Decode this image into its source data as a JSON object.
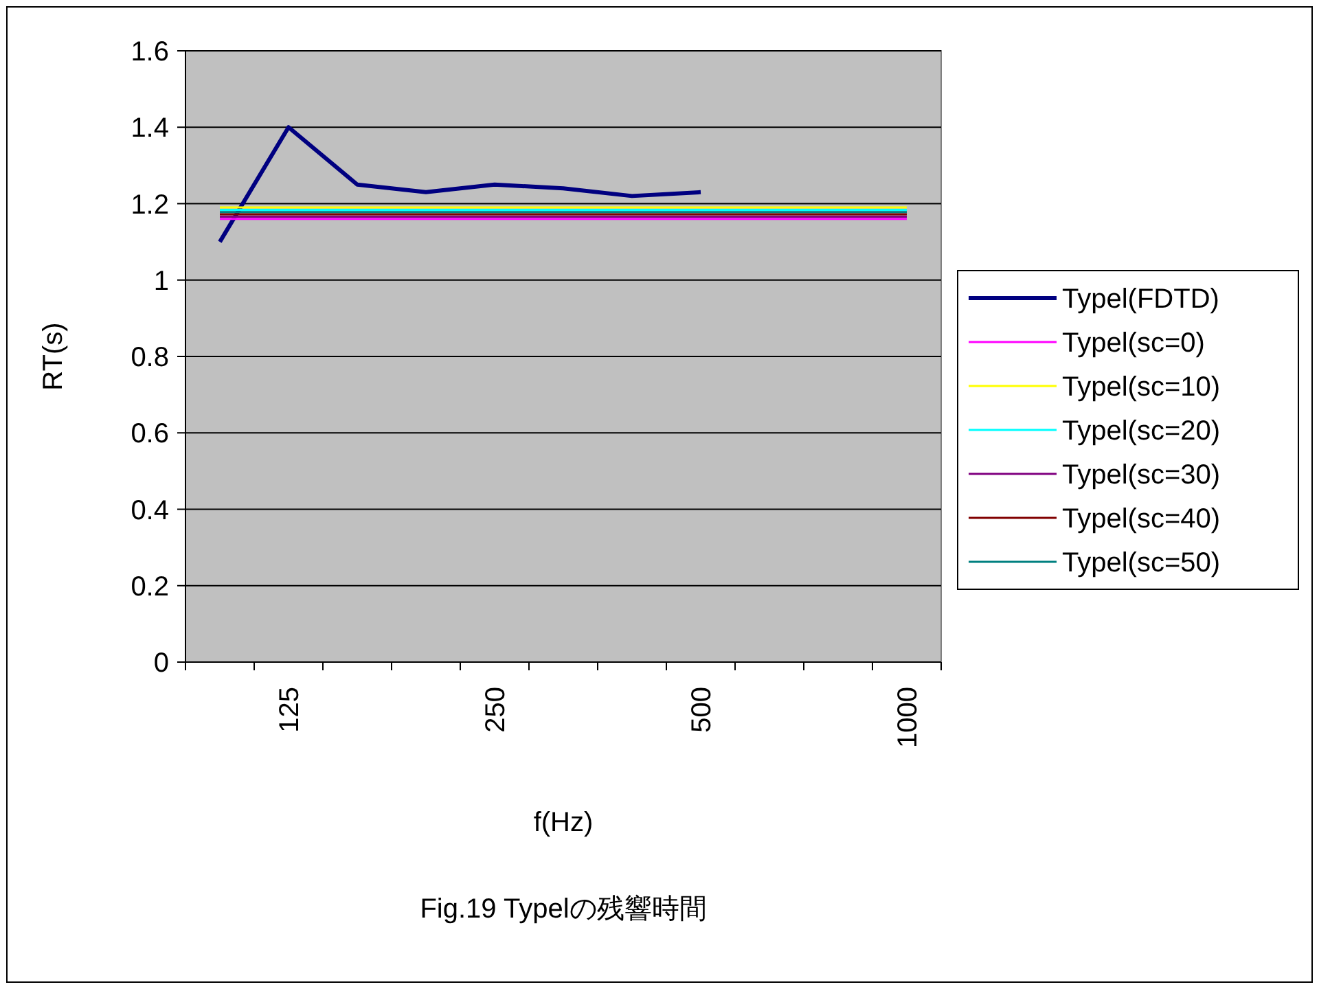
{
  "chart_data": {
    "type": "line",
    "title": "Fig.19 Typelの残響時間",
    "xlabel": "f(Hz)",
    "ylabel": "RT(s)",
    "categories": [
      null,
      "125",
      null,
      null,
      "250",
      null,
      null,
      "500",
      null,
      null,
      "1000"
    ],
    "ylim": [
      0,
      1.6
    ],
    "yticks": [
      0,
      0.2,
      0.4,
      0.6,
      0.8,
      1,
      1.2,
      1.4,
      1.6
    ],
    "grid": "y",
    "legend": "right",
    "marker": "none",
    "line_style": "solid",
    "series": [
      {
        "name": "Typel(FDTD)",
        "color": "#000080",
        "values": [
          1.1,
          1.4,
          1.25,
          1.23,
          1.25,
          1.24,
          1.22,
          1.23,
          null,
          null,
          null
        ]
      },
      {
        "name": "Typel(sc=0)",
        "color": "#ff00ff",
        "values": [
          1.16,
          1.16,
          1.16,
          1.16,
          1.16,
          1.16,
          1.16,
          1.16,
          1.16,
          1.16,
          1.16
        ]
      },
      {
        "name": "Typel(sc=10)",
        "color": "#ffff00",
        "values": [
          1.19,
          1.19,
          1.19,
          1.19,
          1.19,
          1.19,
          1.19,
          1.19,
          1.19,
          1.19,
          1.19
        ]
      },
      {
        "name": "Typel(sc=20)",
        "color": "#00ffff",
        "values": [
          1.184,
          1.184,
          1.184,
          1.184,
          1.184,
          1.184,
          1.184,
          1.184,
          1.184,
          1.184,
          1.184
        ]
      },
      {
        "name": "Typel(sc=30)",
        "color": "#800080",
        "values": [
          1.166,
          1.166,
          1.166,
          1.166,
          1.166,
          1.166,
          1.166,
          1.166,
          1.166,
          1.166,
          1.166
        ]
      },
      {
        "name": "Typel(sc=40)",
        "color": "#800000",
        "values": [
          1.172,
          1.172,
          1.172,
          1.172,
          1.172,
          1.172,
          1.172,
          1.172,
          1.172,
          1.172,
          1.172
        ]
      },
      {
        "name": "Typel(sc=50)",
        "color": "#008080",
        "values": [
          1.178,
          1.178,
          1.178,
          1.178,
          1.178,
          1.178,
          1.178,
          1.178,
          1.178,
          1.178,
          1.178
        ]
      }
    ]
  }
}
